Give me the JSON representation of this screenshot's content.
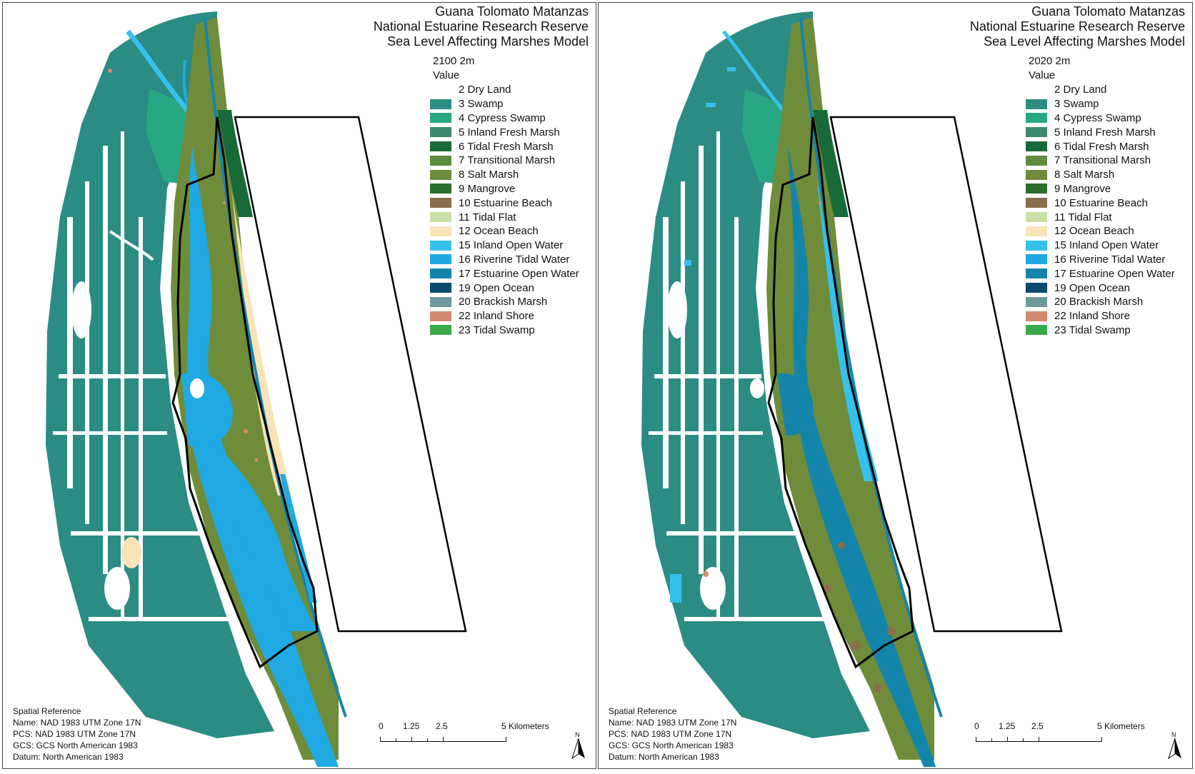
{
  "title": {
    "line1": "Guana Tolomato Matanzas",
    "line2": "National Estuarine Research Reserve",
    "line3": "Sea Level Affecting Marshes Model"
  },
  "legend": {
    "value_label": "Value",
    "classes": [
      {
        "label": "2 Dry Land",
        "color": "#ffffff"
      },
      {
        "label": "3 Swamp",
        "color": "#2a8c82"
      },
      {
        "label": "4 Cypress Swamp",
        "color": "#27a883"
      },
      {
        "label": "5 Inland Fresh Marsh",
        "color": "#3f8a6e"
      },
      {
        "label": "6 Tidal Fresh Marsh",
        "color": "#186b38"
      },
      {
        "label": "7 Transitional Marsh",
        "color": "#5e8c3d"
      },
      {
        "label": "8 Salt Marsh",
        "color": "#6f8c3a"
      },
      {
        "label": "9 Mangrove",
        "color": "#2a6e2c"
      },
      {
        "label": "10 Estuarine Beach",
        "color": "#8a6e4b"
      },
      {
        "label": "11 Tidal Flat",
        "color": "#c8dfa5"
      },
      {
        "label": "12 Ocean Beach",
        "color": "#f8e4b8"
      },
      {
        "label": "15 Inland Open Water",
        "color": "#36c0ec"
      },
      {
        "label": "16 Riverine Tidal Water",
        "color": "#20a9e2"
      },
      {
        "label": "17 Estuarine Open Water",
        "color": "#1485aa"
      },
      {
        "label": "19 Open Ocean",
        "color": "#0b4a6e"
      },
      {
        "label": "20 Brackish Marsh",
        "color": "#6d9a9c"
      },
      {
        "label": "22 Inland Shore",
        "color": "#d48a6e"
      },
      {
        "label": "23 Tidal Swamp",
        "color": "#3aa948"
      }
    ]
  },
  "panels": [
    {
      "scenario": "2100 2m"
    },
    {
      "scenario": "2020 2m"
    }
  ],
  "spatial_reference": {
    "heading": "Spatial Reference",
    "name": "Name: NAD 1983 UTM Zone 17N",
    "pcs": "PCS: NAD 1983 UTM Zone 17N",
    "gcs": "GCS: GCS North American 1983",
    "datum": "Datum: North American 1983"
  },
  "scale_bar": {
    "ticks": [
      "0",
      "1.25",
      "2.5",
      "5 Kilometers"
    ]
  },
  "north_arrow": {
    "label": "N",
    "icon": "north-arrow-icon"
  }
}
